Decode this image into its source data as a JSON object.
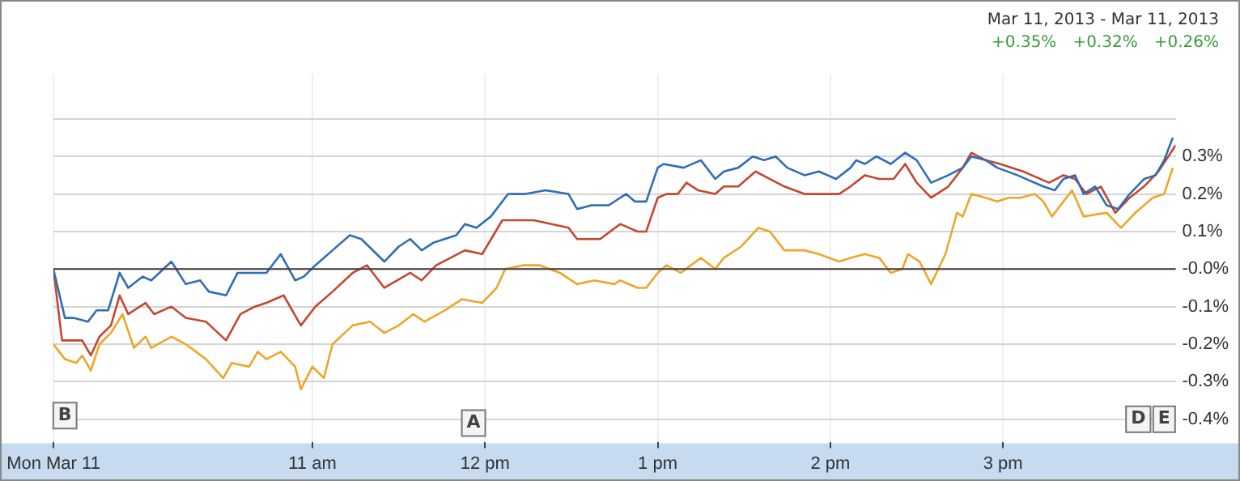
{
  "chart_data": {
    "type": "line",
    "xlim": [
      "2013-03-11T09:30",
      "2013-03-11T16:00"
    ],
    "xticks": [
      {
        "value": "2013-03-11T09:30",
        "label": "Mon Mar 11"
      },
      {
        "value": "2013-03-11T11:00",
        "label": "11 am"
      },
      {
        "value": "2013-03-11T12:00",
        "label": "12 pm"
      },
      {
        "value": "2013-03-11T13:00",
        "label": "1 pm"
      },
      {
        "value": "2013-03-11T14:00",
        "label": "2 pm"
      },
      {
        "value": "2013-03-11T15:00",
        "label": "3 pm"
      }
    ],
    "ylim": [
      -0.46,
      0.52
    ],
    "yticks": [
      {
        "value": -0.4,
        "label": "-0.4%"
      },
      {
        "value": -0.3,
        "label": "-0.3%"
      },
      {
        "value": -0.2,
        "label": "-0.2%"
      },
      {
        "value": -0.1,
        "label": "-0.1%"
      },
      {
        "value": 0,
        "label": "-0.0%"
      },
      {
        "value": 0.1,
        "label": "0.1%"
      },
      {
        "value": 0.2,
        "label": "0.2%"
      },
      {
        "value": 0.3,
        "label": "0.3%"
      },
      {
        "value": 0.4,
        "label": null
      }
    ],
    "grid": true,
    "legend": false,
    "marker": "none",
    "line_style": "solid",
    "ref_lines": [
      {
        "axis": "y",
        "value": 0,
        "color": "#4a3a3a"
      }
    ],
    "annotations": [
      "Mar 11, 2013  -  Mar 11, 2013",
      "+0.35%",
      "+0.32%",
      "+0.26%",
      {
        "text": "B",
        "x": "2013-03-11T09:34",
        "y": -0.39
      },
      {
        "text": "A",
        "x": "2013-03-11T11:56",
        "y": -0.41
      },
      {
        "text": "D",
        "x": "2013-03-11T15:47",
        "y": -0.4
      },
      {
        "text": "E",
        "x": "2013-03-11T15:56",
        "y": -0.4
      }
    ],
    "series": [
      {
        "color": "#2f6db5",
        "x": [
          "2013-03-11T09:30",
          "2013-03-11T09:34",
          "2013-03-11T09:37",
          "2013-03-11T09:42",
          "2013-03-11T09:45",
          "2013-03-11T09:49",
          "2013-03-11T09:53",
          "2013-03-11T09:56",
          "2013-03-11T10:01",
          "2013-03-11T10:04",
          "2013-03-11T10:11",
          "2013-03-11T10:16",
          "2013-03-11T10:21",
          "2013-03-11T10:24",
          "2013-03-11T10:30",
          "2013-03-11T10:34",
          "2013-03-11T10:39",
          "2013-03-11T10:44",
          "2013-03-11T10:49",
          "2013-03-11T10:54",
          "2013-03-11T10:57",
          "2013-03-11T11:01",
          "2013-03-11T11:07",
          "2013-03-11T11:13",
          "2013-03-11T11:17",
          "2013-03-11T11:25",
          "2013-03-11T11:30",
          "2013-03-11T11:34",
          "2013-03-11T11:38",
          "2013-03-11T11:42",
          "2013-03-11T11:50",
          "2013-03-11T11:53",
          "2013-03-11T11:57",
          "2013-03-11T12:02",
          "2013-03-11T12:08",
          "2013-03-11T12:14",
          "2013-03-11T12:21",
          "2013-03-11T12:29",
          "2013-03-11T12:32",
          "2013-03-11T12:37",
          "2013-03-11T12:43",
          "2013-03-11T12:49",
          "2013-03-11T12:52",
          "2013-03-11T12:56",
          "2013-03-11T13:00",
          "2013-03-11T13:02",
          "2013-03-11T13:09",
          "2013-03-11T13:15",
          "2013-03-11T13:20",
          "2013-03-11T13:23",
          "2013-03-11T13:28",
          "2013-03-11T13:33",
          "2013-03-11T13:37",
          "2013-03-11T13:41",
          "2013-03-11T13:45",
          "2013-03-11T13:51",
          "2013-03-11T13:56",
          "2013-03-11T14:02",
          "2013-03-11T14:07",
          "2013-03-11T14:09",
          "2013-03-11T14:12",
          "2013-03-11T14:16",
          "2013-03-11T14:21",
          "2013-03-11T14:26",
          "2013-03-11T14:30",
          "2013-03-11T14:35",
          "2013-03-11T14:41",
          "2013-03-11T14:46",
          "2013-03-11T14:49",
          "2013-03-11T14:54",
          "2013-03-11T14:58",
          "2013-03-11T15:05",
          "2013-03-11T15:14",
          "2013-03-11T15:18",
          "2013-03-11T15:21",
          "2013-03-11T15:25",
          "2013-03-11T15:28",
          "2013-03-11T15:32",
          "2013-03-11T15:36",
          "2013-03-11T15:40",
          "2013-03-11T15:44",
          "2013-03-11T15:49",
          "2013-03-11T15:53",
          "2013-03-11T15:56",
          "2013-03-11T15:59"
        ],
        "values": [
          0,
          -0.13,
          -0.13,
          -0.14,
          -0.11,
          -0.11,
          -0.01,
          -0.05,
          -0.02,
          -0.03,
          0.02,
          -0.04,
          -0.03,
          -0.06,
          -0.07,
          -0.01,
          -0.01,
          -0.01,
          0.04,
          -0.03,
          -0.02,
          0.01,
          0.05,
          0.09,
          0.08,
          0.02,
          0.06,
          0.08,
          0.05,
          0.07,
          0.09,
          0.12,
          0.11,
          0.14,
          0.2,
          0.2,
          0.21,
          0.2,
          0.16,
          0.17,
          0.17,
          0.2,
          0.18,
          0.18,
          0.27,
          0.28,
          0.27,
          0.29,
          0.24,
          0.26,
          0.27,
          0.3,
          0.29,
          0.3,
          0.27,
          0.25,
          0.26,
          0.24,
          0.27,
          0.29,
          0.28,
          0.3,
          0.28,
          0.31,
          0.29,
          0.23,
          0.25,
          0.27,
          0.3,
          0.29,
          0.27,
          0.25,
          0.22,
          0.21,
          0.24,
          0.25,
          0.2,
          0.22,
          0.17,
          0.16,
          0.2,
          0.24,
          0.25,
          0.29,
          0.35
        ]
      },
      {
        "color": "#c4472f",
        "x": [
          "2013-03-11T09:30",
          "2013-03-11T09:33",
          "2013-03-11T09:37",
          "2013-03-11T09:40",
          "2013-03-11T09:43",
          "2013-03-11T09:46",
          "2013-03-11T09:50",
          "2013-03-11T09:53",
          "2013-03-11T09:56",
          "2013-03-11T10:02",
          "2013-03-11T10:05",
          "2013-03-11T10:11",
          "2013-03-11T10:16",
          "2013-03-11T10:23",
          "2013-03-11T10:30",
          "2013-03-11T10:35",
          "2013-03-11T10:40",
          "2013-03-11T10:44",
          "2013-03-11T10:50",
          "2013-03-11T10:56",
          "2013-03-11T11:01",
          "2013-03-11T11:07",
          "2013-03-11T11:14",
          "2013-03-11T11:19",
          "2013-03-11T11:25",
          "2013-03-11T11:34",
          "2013-03-11T11:38",
          "2013-03-11T11:43",
          "2013-03-11T11:53",
          "2013-03-11T11:59",
          "2013-03-11T12:06",
          "2013-03-11T12:17",
          "2013-03-11T12:29",
          "2013-03-11T12:32",
          "2013-03-11T12:40",
          "2013-03-11T12:47",
          "2013-03-11T12:53",
          "2013-03-11T12:56",
          "2013-03-11T13:00",
          "2013-03-11T13:03",
          "2013-03-11T13:07",
          "2013-03-11T13:10",
          "2013-03-11T13:14",
          "2013-03-11T13:20",
          "2013-03-11T13:23",
          "2013-03-11T13:28",
          "2013-03-11T13:34",
          "2013-03-11T13:39",
          "2013-03-11T13:44",
          "2013-03-11T13:51",
          "2013-03-11T13:56",
          "2013-03-11T14:03",
          "2013-03-11T14:07",
          "2013-03-11T14:12",
          "2013-03-11T14:17",
          "2013-03-11T14:22",
          "2013-03-11T14:26",
          "2013-03-11T14:30",
          "2013-03-11T14:35",
          "2013-03-11T14:41",
          "2013-03-11T14:46",
          "2013-03-11T14:49",
          "2013-03-11T14:54",
          "2013-03-11T14:59",
          "2013-03-11T15:07",
          "2013-03-11T15:16",
          "2013-03-11T15:21",
          "2013-03-11T15:25",
          "2013-03-11T15:29",
          "2013-03-11T15:34",
          "2013-03-11T15:39",
          "2013-03-11T15:44",
          "2013-03-11T15:49",
          "2013-03-11T15:54",
          "2013-03-11T16:00"
        ],
        "values": [
          0,
          -0.19,
          -0.19,
          -0.19,
          -0.23,
          -0.18,
          -0.15,
          -0.07,
          -0.12,
          -0.09,
          -0.12,
          -0.1,
          -0.13,
          -0.14,
          -0.19,
          -0.12,
          -0.1,
          -0.09,
          -0.07,
          -0.15,
          -0.1,
          -0.06,
          -0.01,
          0.01,
          -0.05,
          -0.01,
          -0.03,
          0.01,
          0.05,
          0.04,
          0.13,
          0.13,
          0.11,
          0.08,
          0.08,
          0.12,
          0.1,
          0.1,
          0.19,
          0.2,
          0.2,
          0.23,
          0.21,
          0.2,
          0.22,
          0.22,
          0.26,
          0.24,
          0.22,
          0.2,
          0.2,
          0.2,
          0.22,
          0.25,
          0.24,
          0.24,
          0.28,
          0.23,
          0.19,
          0.22,
          0.27,
          0.31,
          0.29,
          0.28,
          0.26,
          0.23,
          0.25,
          0.24,
          0.2,
          0.22,
          0.15,
          0.19,
          0.22,
          0.26,
          0.33
        ]
      },
      {
        "color": "#eda62a",
        "x": [
          "2013-03-11T09:30",
          "2013-03-11T09:34",
          "2013-03-11T09:38",
          "2013-03-11T09:40",
          "2013-03-11T09:43",
          "2013-03-11T09:46",
          "2013-03-11T09:50",
          "2013-03-11T09:54",
          "2013-03-11T09:58",
          "2013-03-11T10:02",
          "2013-03-11T10:04",
          "2013-03-11T10:11",
          "2013-03-11T10:16",
          "2013-03-11T10:23",
          "2013-03-11T10:29",
          "2013-03-11T10:32",
          "2013-03-11T10:38",
          "2013-03-11T10:41",
          "2013-03-11T10:44",
          "2013-03-11T10:49",
          "2013-03-11T10:54",
          "2013-03-11T10:56",
          "2013-03-11T11:00",
          "2013-03-11T11:04",
          "2013-03-11T11:07",
          "2013-03-11T11:14",
          "2013-03-11T11:20",
          "2013-03-11T11:25",
          "2013-03-11T11:30",
          "2013-03-11T11:35",
          "2013-03-11T11:39",
          "2013-03-11T11:46",
          "2013-03-11T11:52",
          "2013-03-11T11:59",
          "2013-03-11T12:04",
          "2013-03-11T12:07",
          "2013-03-11T12:13",
          "2013-03-11T12:19",
          "2013-03-11T12:26",
          "2013-03-11T12:32",
          "2013-03-11T12:38",
          "2013-03-11T12:45",
          "2013-03-11T12:47",
          "2013-03-11T12:53",
          "2013-03-11T12:56",
          "2013-03-11T13:00",
          "2013-03-11T13:03",
          "2013-03-11T13:08",
          "2013-03-11T13:15",
          "2013-03-11T13:20",
          "2013-03-11T13:23",
          "2013-03-11T13:29",
          "2013-03-11T13:35",
          "2013-03-11T13:39",
          "2013-03-11T13:44",
          "2013-03-11T13:51",
          "2013-03-11T13:56",
          "2013-03-11T14:03",
          "2013-03-11T14:07",
          "2013-03-11T14:12",
          "2013-03-11T14:17",
          "2013-03-11T14:21",
          "2013-03-11T14:25",
          "2013-03-11T14:27",
          "2013-03-11T14:31",
          "2013-03-11T14:35",
          "2013-03-11T14:40",
          "2013-03-11T14:44",
          "2013-03-11T14:46",
          "2013-03-11T14:49",
          "2013-03-11T14:54",
          "2013-03-11T14:58",
          "2013-03-11T15:02",
          "2013-03-11T15:06",
          "2013-03-11T15:11",
          "2013-03-11T15:14",
          "2013-03-11T15:17",
          "2013-03-11T15:24",
          "2013-03-11T15:28",
          "2013-03-11T15:36",
          "2013-03-11T15:41",
          "2013-03-11T15:46",
          "2013-03-11T15:52",
          "2013-03-11T15:56",
          "2013-03-11T15:59"
        ],
        "values": [
          -0.2,
          -0.24,
          -0.25,
          -0.23,
          -0.27,
          -0.2,
          -0.17,
          -0.12,
          -0.21,
          -0.18,
          -0.21,
          -0.18,
          -0.2,
          -0.24,
          -0.29,
          -0.25,
          -0.26,
          -0.22,
          -0.24,
          -0.22,
          -0.26,
          -0.32,
          -0.26,
          -0.29,
          -0.2,
          -0.15,
          -0.14,
          -0.17,
          -0.15,
          -0.12,
          -0.14,
          -0.11,
          -0.08,
          -0.09,
          -0.05,
          0,
          0.01,
          0.01,
          -0.01,
          -0.04,
          -0.03,
          -0.04,
          -0.03,
          -0.05,
          -0.05,
          -0.01,
          0.01,
          -0.01,
          0.03,
          0,
          0.03,
          0.06,
          0.11,
          0.1,
          0.05,
          0.05,
          0.04,
          0.02,
          0.03,
          0.04,
          0.03,
          -0.01,
          0,
          0.04,
          0.02,
          -0.04,
          0.04,
          0.15,
          0.14,
          0.2,
          0.19,
          0.18,
          0.19,
          0.19,
          0.2,
          0.18,
          0.14,
          0.21,
          0.14,
          0.15,
          0.11,
          0.15,
          0.19,
          0.2,
          0.27
        ]
      }
    ]
  }
}
